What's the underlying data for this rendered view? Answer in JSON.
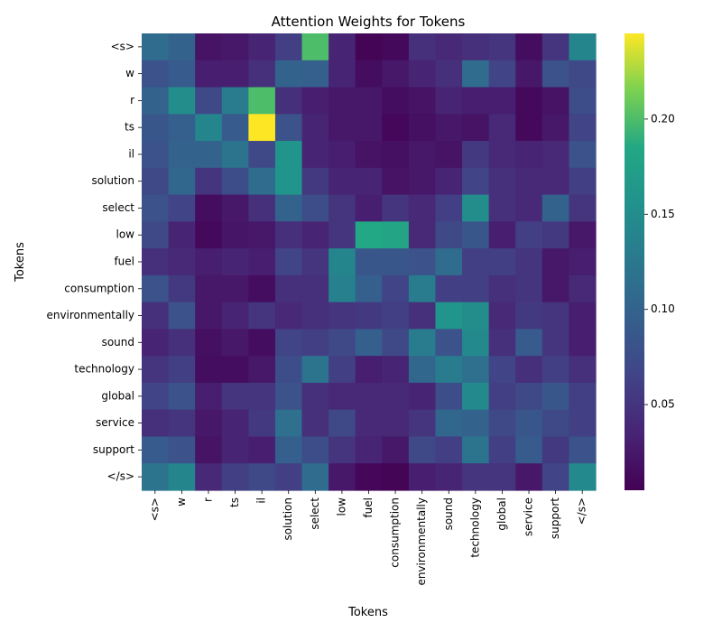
{
  "chart_data": {
    "type": "heatmap",
    "title": "Attention Weights for Tokens",
    "xlabel": "Tokens",
    "ylabel": "Tokens",
    "x_tokens": [
      "<s>",
      "w",
      "r",
      "ts",
      "il",
      "solution",
      "select",
      "low",
      "fuel",
      "consumption",
      "environmentally",
      "sound",
      "technology",
      "global",
      "service",
      "support",
      "</s>"
    ],
    "y_tokens": [
      "<s>",
      "w",
      "r",
      "ts",
      "il",
      "solution",
      "select",
      "low",
      "fuel",
      "consumption",
      "environmentally",
      "sound",
      "technology",
      "global",
      "service",
      "support",
      "</s>"
    ],
    "values": [
      [
        0.11,
        0.1,
        0.02,
        0.025,
        0.035,
        0.06,
        0.2,
        0.035,
        0.008,
        0.012,
        0.045,
        0.04,
        0.045,
        0.05,
        0.015,
        0.05,
        0.14
      ],
      [
        0.08,
        0.09,
        0.03,
        0.03,
        0.045,
        0.1,
        0.095,
        0.035,
        0.015,
        0.025,
        0.035,
        0.045,
        0.11,
        0.065,
        0.025,
        0.08,
        0.07
      ],
      [
        0.1,
        0.15,
        0.07,
        0.13,
        0.2,
        0.045,
        0.03,
        0.025,
        0.025,
        0.015,
        0.02,
        0.035,
        0.03,
        0.03,
        0.012,
        0.02,
        0.075
      ],
      [
        0.085,
        0.095,
        0.14,
        0.09,
        0.245,
        0.08,
        0.035,
        0.025,
        0.025,
        0.01,
        0.018,
        0.025,
        0.02,
        0.04,
        0.012,
        0.025,
        0.065
      ],
      [
        0.08,
        0.1,
        0.1,
        0.12,
        0.07,
        0.16,
        0.035,
        0.03,
        0.02,
        0.018,
        0.025,
        0.02,
        0.055,
        0.04,
        0.035,
        0.04,
        0.08
      ],
      [
        0.07,
        0.105,
        0.05,
        0.075,
        0.11,
        0.16,
        0.055,
        0.035,
        0.035,
        0.02,
        0.025,
        0.035,
        0.065,
        0.045,
        0.04,
        0.04,
        0.06
      ],
      [
        0.08,
        0.065,
        0.015,
        0.025,
        0.045,
        0.1,
        0.075,
        0.05,
        0.03,
        0.05,
        0.04,
        0.06,
        0.15,
        0.045,
        0.04,
        0.1,
        0.05
      ],
      [
        0.07,
        0.035,
        0.012,
        0.022,
        0.025,
        0.045,
        0.035,
        0.05,
        0.185,
        0.18,
        0.04,
        0.07,
        0.085,
        0.03,
        0.06,
        0.055,
        0.025
      ],
      [
        0.045,
        0.04,
        0.03,
        0.035,
        0.03,
        0.065,
        0.05,
        0.14,
        0.085,
        0.085,
        0.08,
        0.11,
        0.06,
        0.06,
        0.05,
        0.025,
        0.03
      ],
      [
        0.08,
        0.055,
        0.025,
        0.025,
        0.015,
        0.045,
        0.045,
        0.135,
        0.095,
        0.065,
        0.13,
        0.06,
        0.06,
        0.045,
        0.05,
        0.025,
        0.04
      ],
      [
        0.045,
        0.08,
        0.025,
        0.035,
        0.05,
        0.04,
        0.045,
        0.05,
        0.055,
        0.06,
        0.045,
        0.16,
        0.15,
        0.04,
        0.055,
        0.05,
        0.03
      ],
      [
        0.035,
        0.045,
        0.018,
        0.025,
        0.015,
        0.065,
        0.06,
        0.07,
        0.095,
        0.07,
        0.13,
        0.08,
        0.145,
        0.045,
        0.09,
        0.05,
        0.03
      ],
      [
        0.05,
        0.06,
        0.015,
        0.015,
        0.025,
        0.075,
        0.12,
        0.06,
        0.03,
        0.035,
        0.105,
        0.13,
        0.115,
        0.065,
        0.045,
        0.06,
        0.045
      ],
      [
        0.065,
        0.08,
        0.03,
        0.05,
        0.05,
        0.08,
        0.045,
        0.04,
        0.04,
        0.04,
        0.035,
        0.075,
        0.145,
        0.06,
        0.07,
        0.085,
        0.06
      ],
      [
        0.045,
        0.05,
        0.025,
        0.035,
        0.055,
        0.115,
        0.045,
        0.07,
        0.04,
        0.04,
        0.05,
        0.105,
        0.1,
        0.07,
        0.085,
        0.07,
        0.06
      ],
      [
        0.09,
        0.08,
        0.02,
        0.035,
        0.03,
        0.095,
        0.075,
        0.05,
        0.035,
        0.025,
        0.07,
        0.06,
        0.12,
        0.06,
        0.09,
        0.055,
        0.08
      ],
      [
        0.12,
        0.14,
        0.04,
        0.06,
        0.07,
        0.06,
        0.11,
        0.025,
        0.01,
        0.008,
        0.03,
        0.035,
        0.05,
        0.05,
        0.025,
        0.065,
        0.145
      ]
    ],
    "vmin": 0.005,
    "vmax": 0.245,
    "colormap": "viridis",
    "colorbar_ticks": [
      0.05,
      0.1,
      0.15,
      0.2
    ],
    "colorbar_tick_labels": [
      "0.05",
      "0.10",
      "0.15",
      "0.20"
    ],
    "grid": false
  }
}
